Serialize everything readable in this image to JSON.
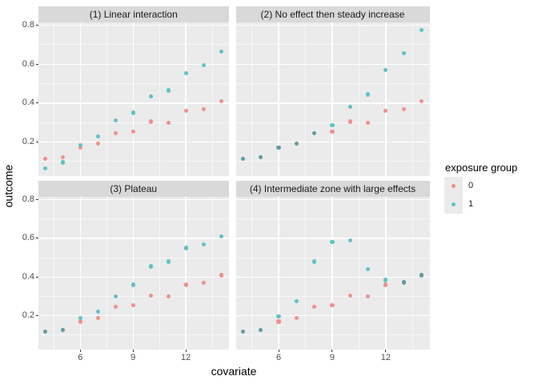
{
  "chart_data": {
    "type": "scatter",
    "xlabel": "covariate",
    "ylabel": "outcome",
    "x": [
      4,
      5,
      6,
      7,
      8,
      9,
      10,
      11,
      12,
      13,
      14
    ],
    "x_ticks": [
      6,
      9,
      12
    ],
    "x_tick_labels": [
      "6",
      "9",
      "12"
    ],
    "y_ticks": [
      0.2,
      0.4,
      0.6,
      0.8
    ],
    "y_tick_labels": [
      "0.2",
      "0.4",
      "0.6",
      "0.8"
    ],
    "x_minor": [
      4.5,
      7.5,
      10.5,
      13.5
    ],
    "y_minor": [
      0.1,
      0.3,
      0.5,
      0.7
    ],
    "xlim": [
      3.6,
      14.45
    ],
    "ylim": [
      0.025,
      0.815
    ],
    "grid": true,
    "facets": [
      {
        "title": "(1) Linear interaction",
        "series": [
          {
            "name": "0",
            "values": [
              0.115,
              0.12,
              0.17,
              0.19,
              0.245,
              0.255,
              0.305,
              0.3,
              0.36,
              0.37,
              0.41
            ]
          },
          {
            "name": "1",
            "values": [
              0.065,
              0.095,
              0.185,
              0.23,
              0.31,
              0.35,
              0.435,
              0.465,
              0.555,
              0.595,
              0.665
            ]
          }
        ]
      },
      {
        "title": "(2) No effect then steady increase",
        "series": [
          {
            "name": "0",
            "values": [
              0.115,
              0.12,
              0.17,
              0.19,
              0.245,
              0.255,
              0.305,
              0.3,
              0.36,
              0.37,
              0.41
            ]
          },
          {
            "name": "1",
            "values": [
              0.115,
              0.12,
              0.17,
              0.19,
              0.245,
              0.285,
              0.38,
              0.445,
              0.57,
              0.655,
              0.775
            ]
          }
        ]
      },
      {
        "title": "(3) Plateau",
        "series": [
          {
            "name": "0",
            "values": [
              0.115,
              0.12,
              0.17,
              0.19,
              0.245,
              0.255,
              0.305,
              0.3,
              0.36,
              0.37,
              0.41
            ]
          },
          {
            "name": "1",
            "values": [
              0.12,
              0.13,
              0.19,
              0.22,
              0.3,
              0.36,
              0.455,
              0.48,
              0.55,
              0.57,
              0.61
            ]
          }
        ]
      },
      {
        "title": "(4) Intermediate zone with large effects",
        "series": [
          {
            "name": "0",
            "values": [
              0.115,
              0.12,
              0.17,
              0.19,
              0.245,
              0.255,
              0.305,
              0.3,
              0.36,
              0.37,
              0.41
            ]
          },
          {
            "name": "1",
            "values": [
              0.12,
              0.13,
              0.195,
              0.275,
              0.48,
              0.58,
              0.59,
              0.44,
              0.385,
              0.375,
              0.41
            ]
          }
        ]
      }
    ],
    "legend": {
      "title": "exposure group",
      "position": "right",
      "entries": [
        {
          "label": "0",
          "color": "#F0908A"
        },
        {
          "label": "1",
          "color": "#5FC2C6"
        }
      ],
      "overlap_color": "#5F9B9D"
    },
    "colors": {
      "panel_bg": "#EBEBEB",
      "strip_bg": "#D9D9D9",
      "grid_major": "#FFFFFF",
      "grid_minor": "rgba(255,255,255,0.62)",
      "tick_text": "#4D4D4D",
      "text": "#1A1A1A"
    }
  }
}
